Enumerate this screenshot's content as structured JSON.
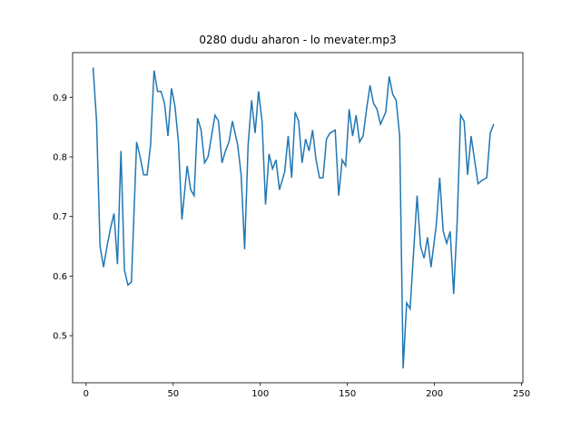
{
  "chart_data": {
    "type": "line",
    "title": "0280 dudu aharon - lo mevater.mp3",
    "x": [
      4,
      6,
      8,
      10,
      12,
      14,
      16,
      18,
      20,
      22,
      24,
      26,
      29,
      31,
      33,
      35,
      37,
      39,
      41,
      43,
      45,
      47,
      49,
      51,
      53,
      55,
      58,
      60,
      62,
      64,
      66,
      68,
      70,
      72,
      74,
      76,
      78,
      80,
      82,
      84,
      87,
      89,
      91,
      93,
      95,
      97,
      99,
      101,
      103,
      105,
      107,
      109,
      111,
      114,
      116,
      118,
      120,
      122,
      124,
      126,
      128,
      130,
      132,
      134,
      136,
      138,
      140,
      143,
      145,
      147,
      149,
      151,
      153,
      155,
      157,
      159,
      161,
      163,
      165,
      167,
      169,
      172,
      174,
      176,
      178,
      180,
      182,
      184,
      186,
      188,
      190,
      192,
      194,
      196,
      198,
      201,
      203,
      205,
      207,
      209,
      211,
      213,
      215,
      217,
      219,
      221,
      223,
      225,
      227,
      230,
      232,
      234
    ],
    "series": [
      {
        "color": "#1f77b4",
        "values": [
          0.95,
          0.86,
          0.65,
          0.615,
          0.65,
          0.68,
          0.705,
          0.62,
          0.81,
          0.61,
          0.585,
          0.59,
          0.825,
          0.8,
          0.77,
          0.77,
          0.82,
          0.945,
          0.91,
          0.91,
          0.89,
          0.835,
          0.915,
          0.885,
          0.825,
          0.695,
          0.785,
          0.745,
          0.735,
          0.865,
          0.845,
          0.79,
          0.8,
          0.835,
          0.87,
          0.86,
          0.79,
          0.81,
          0.825,
          0.86,
          0.82,
          0.77,
          0.645,
          0.82,
          0.895,
          0.84,
          0.91,
          0.86,
          0.72,
          0.805,
          0.78,
          0.795,
          0.745,
          0.775,
          0.835,
          0.765,
          0.875,
          0.86,
          0.79,
          0.83,
          0.81,
          0.845,
          0.795,
          0.765,
          0.765,
          0.83,
          0.84,
          0.845,
          0.735,
          0.795,
          0.785,
          0.88,
          0.835,
          0.87,
          0.825,
          0.835,
          0.88,
          0.92,
          0.89,
          0.88,
          0.855,
          0.875,
          0.935,
          0.905,
          0.895,
          0.835,
          0.445,
          0.555,
          0.545,
          0.64,
          0.735,
          0.65,
          0.63,
          0.665,
          0.615,
          0.685,
          0.765,
          0.675,
          0.655,
          0.675,
          0.57,
          0.69,
          0.87,
          0.86,
          0.77,
          0.835,
          0.795,
          0.755,
          0.76,
          0.765,
          0.84,
          0.855
        ]
      }
    ],
    "xlim": [
      -7.75,
      250.75
    ],
    "ylim": [
      0.421,
      0.975
    ],
    "xticks": [
      0,
      50,
      100,
      150,
      200,
      250
    ],
    "yticks": [
      0.5,
      0.6,
      0.7,
      0.8,
      0.9
    ]
  }
}
